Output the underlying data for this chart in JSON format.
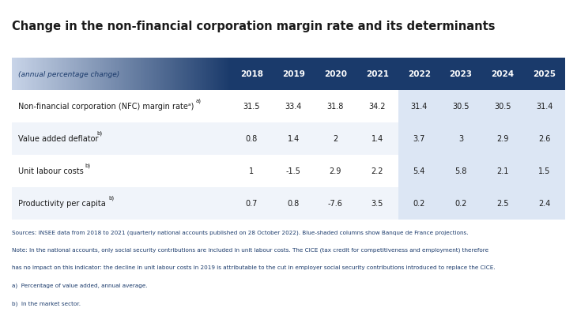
{
  "title": "Change in the non-financial corporation margin rate and its determinants",
  "header_label": "(annual percentage change)",
  "columns": [
    "2018",
    "2019",
    "2020",
    "2021",
    "2022",
    "2023",
    "2024",
    "2025"
  ],
  "rows": [
    {
      "label": "Non-financial corporation (NFC) margin rateᵃ)",
      "label_plain": "Non-financial corporation (NFC) margin rate",
      "superscript": "a)",
      "values": [
        31.5,
        33.4,
        31.8,
        34.2,
        31.4,
        30.5,
        30.5,
        31.4
      ]
    },
    {
      "label": "Value added deflator",
      "superscript": "b)",
      "values": [
        0.8,
        1.4,
        2.0,
        1.4,
        3.7,
        3.0,
        2.9,
        2.6
      ]
    },
    {
      "label": "Unit labour costs",
      "superscript": "b)",
      "values": [
        1.0,
        -1.5,
        2.9,
        2.2,
        5.4,
        5.8,
        2.1,
        1.5
      ]
    },
    {
      "label": "Productivity per capita",
      "superscript": "b)",
      "values": [
        0.7,
        0.8,
        -7.6,
        3.5,
        0.2,
        0.2,
        2.5,
        2.4
      ]
    }
  ],
  "header_bg_left": "#c8d4e8",
  "header_bg_right": "#1a3a6b",
  "header_text_color_left": "#1a3a6b",
  "header_text_color_right": "#ffffff",
  "projection_cols": [
    4,
    5,
    6,
    7
  ],
  "projection_bg": "#dce6f4",
  "row_bg_even": "#ffffff",
  "row_bg_odd": "#f0f4fa",
  "border_color": "#1a3a6b",
  "footnote_color": "#1a3a6b",
  "footnotes": [
    "Sources: INSEE data from 2018 to 2021 (quarterly national accounts published on 28 October 2022). Blue-shaded columns show Banque de France projections.",
    "Note: In the national accounts, only social security contributions are included in unit labour costs. The CICE (tax credit for competitiveness and employment) therefore",
    "has no impact on this indicator: the decline in unit labour costs in 2019 is attributable to the cut in employer social security contributions introduced to replace the CICE.",
    "a)  Percentage of value added, annual average.",
    "b)  In the market sector."
  ]
}
